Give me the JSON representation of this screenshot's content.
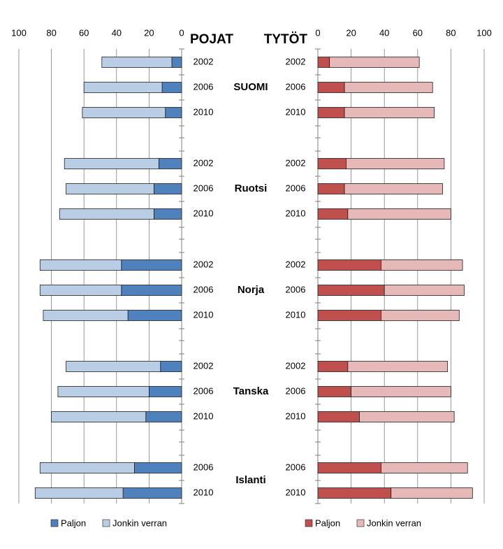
{
  "chart_data": [
    {
      "type": "bar",
      "orientation": "horizontal-stacked",
      "title": "POJAT",
      "x_direction": "reversed",
      "xlim": [
        0,
        100
      ],
      "xticks": [
        "100",
        "80",
        "60",
        "40",
        "20",
        "0"
      ],
      "grid": "vertical",
      "legend": "bottom-left",
      "categories": [
        {
          "country": "SUOMI",
          "year": "2002"
        },
        {
          "country": "SUOMI",
          "year": "2006"
        },
        {
          "country": "SUOMI",
          "year": "2010"
        },
        {
          "country": "Ruotsi",
          "year": "2002"
        },
        {
          "country": "Ruotsi",
          "year": "2006"
        },
        {
          "country": "Ruotsi",
          "year": "2010"
        },
        {
          "country": "Norja",
          "year": "2002"
        },
        {
          "country": "Norja",
          "year": "2006"
        },
        {
          "country": "Norja",
          "year": "2010"
        },
        {
          "country": "Tanska",
          "year": "2002"
        },
        {
          "country": "Tanska",
          "year": "2006"
        },
        {
          "country": "Tanska",
          "year": "2010"
        },
        {
          "country": "Islanti",
          "year": "2006"
        },
        {
          "country": "Islanti",
          "year": "2010"
        }
      ],
      "series": [
        {
          "name": "Paljon",
          "color": "#4f81bd",
          "values": [
            6,
            12,
            10,
            14,
            17,
            17,
            37,
            37,
            33,
            13,
            20,
            22,
            29,
            36
          ]
        },
        {
          "name": "Jonkin verran",
          "color": "#b9cde5",
          "values": [
            43,
            48,
            51,
            58,
            54,
            58,
            50,
            50,
            52,
            58,
            56,
            58,
            58,
            54
          ]
        }
      ]
    },
    {
      "type": "bar",
      "orientation": "horizontal-stacked",
      "title": "TYTÖT",
      "xlim": [
        0,
        100
      ],
      "xticks": [
        "0",
        "20",
        "40",
        "60",
        "80",
        "100"
      ],
      "grid": "vertical",
      "legend": "bottom-left",
      "categories": [
        {
          "country": "SUOMI",
          "year": "2002"
        },
        {
          "country": "SUOMI",
          "year": "2006"
        },
        {
          "country": "SUOMI",
          "year": "2010"
        },
        {
          "country": "Ruotsi",
          "year": "2002"
        },
        {
          "country": "Ruotsi",
          "year": "2006"
        },
        {
          "country": "Ruotsi",
          "year": "2010"
        },
        {
          "country": "Norja",
          "year": "2002"
        },
        {
          "country": "Norja",
          "year": "2006"
        },
        {
          "country": "Norja",
          "year": "2010"
        },
        {
          "country": "Tanska",
          "year": "2002"
        },
        {
          "country": "Tanska",
          "year": "2006"
        },
        {
          "country": "Tanska",
          "year": "2010"
        },
        {
          "country": "Islanti",
          "year": "2006"
        },
        {
          "country": "Islanti",
          "year": "2010"
        }
      ],
      "series": [
        {
          "name": "Paljon",
          "color": "#c0504d",
          "values": [
            7,
            16,
            16,
            17,
            16,
            18,
            38,
            40,
            38,
            18,
            20,
            25,
            38,
            44
          ]
        },
        {
          "name": "Jonkin verran",
          "color": "#e6b9b8",
          "values": [
            54,
            53,
            54,
            59,
            59,
            62,
            49,
            48,
            47,
            60,
            60,
            57,
            52,
            49
          ]
        }
      ]
    }
  ]
}
